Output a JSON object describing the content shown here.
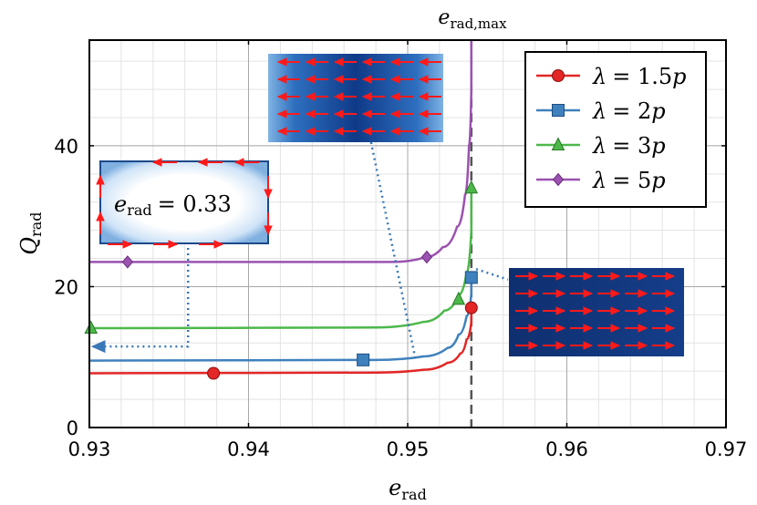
{
  "chart_data": {
    "type": "line",
    "title": "",
    "xlabel": {
      "base": "e",
      "sub": "rad"
    },
    "ylabel": {
      "base": "Q",
      "sub": "rad"
    },
    "xlim": [
      0.93,
      0.97
    ],
    "ylim": [
      0,
      55
    ],
    "xticks": [
      0.93,
      0.94,
      0.95,
      0.96,
      0.97
    ],
    "xtick_labels": [
      "0.93",
      "0.94",
      "0.95",
      "0.96",
      "0.97"
    ],
    "yticks": [
      0,
      20,
      40
    ],
    "ytick_labels": [
      "0",
      "20",
      "40"
    ],
    "grid": true,
    "legend_position": "top-right",
    "vline": {
      "x": 0.954,
      "label_base": "e",
      "label_sub": "rad,max"
    },
    "series": [
      {
        "name": "λ = 1.5p",
        "symbol": "λ",
        "eq": "= 1.5",
        "unit": "p",
        "color": "#e32626",
        "marker": "circle",
        "x": [
          0.93,
          0.94,
          0.948,
          0.951,
          0.9525,
          0.9533,
          0.9537,
          0.954,
          0.954
        ],
        "y": [
          7.7,
          7.75,
          7.8,
          8.2,
          9.2,
          10.5,
          12.5,
          15,
          17
        ],
        "marker_points": [
          [
            0.9378,
            7.7
          ],
          [
            0.954,
            17.0
          ]
        ]
      },
      {
        "name": "λ = 2p",
        "symbol": "λ",
        "eq": "= 2",
        "unit": "p",
        "color": "#3f81bd",
        "marker": "square",
        "x": [
          0.93,
          0.94,
          0.948,
          0.951,
          0.9525,
          0.9532,
          0.9537,
          0.954,
          0.954
        ],
        "y": [
          9.5,
          9.55,
          9.6,
          10.1,
          11.3,
          13.2,
          15.8,
          19,
          21.3
        ],
        "marker_points": [
          [
            0.9472,
            9.6
          ],
          [
            0.954,
            21.3
          ]
        ]
      },
      {
        "name": "λ = 3p",
        "symbol": "λ",
        "eq": "= 3",
        "unit": "p",
        "color": "#4cb84a",
        "marker": "triangle",
        "x": [
          0.93,
          0.94,
          0.948,
          0.951,
          0.9523,
          0.9532,
          0.9537,
          0.954,
          0.954
        ],
        "y": [
          14.1,
          14.15,
          14.2,
          15.0,
          16.6,
          18.8,
          22.0,
          28.0,
          34.0
        ],
        "marker_points": [
          [
            0.9301,
            14.1
          ],
          [
            0.9532,
            18.2
          ],
          [
            0.954,
            34.0
          ]
        ]
      },
      {
        "name": "λ = 5p",
        "symbol": "λ",
        "eq": "= 5",
        "unit": "p",
        "color": "#9b52b0",
        "marker": "diamond",
        "x": [
          0.93,
          0.94,
          0.949,
          0.951,
          0.9522,
          0.9531,
          0.9536,
          0.95385,
          0.954,
          0.954
        ],
        "y": [
          23.5,
          23.5,
          23.5,
          24.1,
          25.6,
          28.5,
          33.0,
          40.0,
          48.0,
          55.0
        ],
        "marker_points": [
          [
            0.9324,
            23.5
          ],
          [
            0.9512,
            24.2
          ]
        ]
      }
    ],
    "annotations": [
      {
        "kind": "inset",
        "arrows": "circulating",
        "label_base": "e",
        "label_sub": "rad",
        "label_value": "= 0.33",
        "connector": [
          [
            0.9362,
            25.5
          ],
          [
            0.9362,
            11.5
          ],
          [
            0.9302,
            11.5
          ]
        ]
      },
      {
        "kind": "inset",
        "arrows": "left",
        "connector": [
          [
            0.9477,
            40.5
          ],
          [
            0.9505,
            9.6
          ]
        ]
      },
      {
        "kind": "inset",
        "arrows": "right",
        "connector": [
          [
            0.9543,
            22.5
          ],
          [
            0.9563,
            21.0
          ]
        ]
      }
    ]
  }
}
